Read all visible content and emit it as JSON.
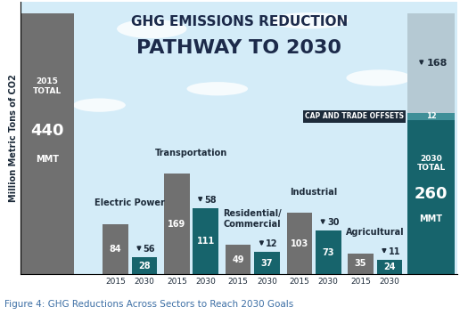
{
  "chart_data": {
    "type": "bar",
    "title": "GHG EMISSIONS REDUCTION",
    "subtitle": "PATHWAY TO 2030",
    "y_label": "Million Metric Tons of CO2",
    "caption": "Figure 4: GHG Reductions Across Sectors to Reach 2030 Goals",
    "categories": [
      "Electric Power",
      "Transportation",
      "Residential/\nCommercial",
      "Industrial",
      "Agricultural"
    ],
    "series": [
      {
        "name": "2015",
        "color": "#707070",
        "values": [
          84,
          169,
          49,
          103,
          35
        ]
      },
      {
        "name": "2030",
        "color": "#17646c",
        "values": [
          28,
          111,
          37,
          73,
          24
        ]
      }
    ],
    "reductions": [
      56,
      58,
      12,
      30,
      11
    ],
    "total_2015": {
      "label": "2015\nTOTAL",
      "value": 440,
      "unit": "MMT",
      "color": "#707070"
    },
    "total_2030": {
      "label": "2030\nTOTAL",
      "value": 260,
      "unit": "MMT",
      "color": "#17646c"
    },
    "offsets": {
      "label": "CAP AND TRADE OFFSETS",
      "value": 12,
      "color": "#3f8f98"
    },
    "reduction_total": {
      "value": 168,
      "color": "#b5c9d3"
    },
    "ylim": [
      0,
      460
    ],
    "yticks": [],
    "tick_labels": "x",
    "data_labels": true
  }
}
